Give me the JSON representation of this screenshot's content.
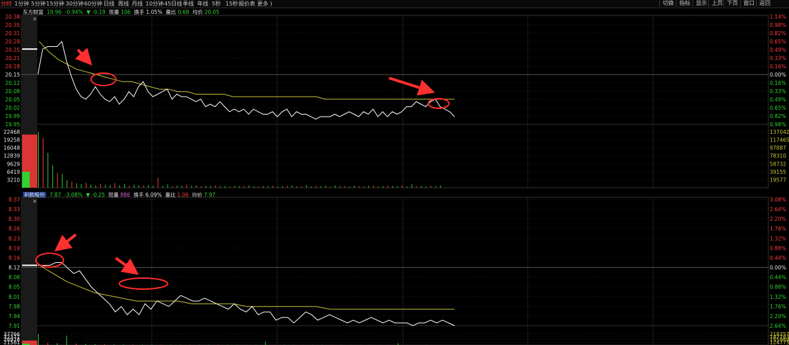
{
  "toolbar": {
    "tabs": [
      "分时",
      "1分钟",
      "5分钟",
      "15分钟",
      "30分钟",
      "60分钟",
      "日线",
      "周线",
      "月线",
      "10分钟",
      "45日线",
      "季线",
      "年线",
      "5秒",
      "15秒",
      "报价表",
      "更多 )"
    ],
    "active_tab": "分时",
    "right_buttons": [
      "切换",
      "指标",
      "显示",
      "上页",
      "下页",
      "窗口",
      "返回"
    ]
  },
  "colors": {
    "up": "#ff3b3b",
    "down": "#2fd32f",
    "avg": "#c8c43a",
    "price": "#ffffff",
    "grid": "#222222"
  },
  "panel1": {
    "name": "东方财富",
    "price": "19.96",
    "change_pct": "-0.94%",
    "change_arrow": "▼",
    "change": "-0.19",
    "volume_label": "现量",
    "volume": "106",
    "turnover_label": "换手",
    "turnover": "1.05%",
    "ratio_label": "量比",
    "ratio": "0.68",
    "avg_label": "均价",
    "avg": "20.05",
    "price_axis": [
      "20.38",
      "20.35",
      "20.31",
      "20.28",
      "20.25",
      "20.21",
      "20.18",
      "20.15",
      "20.12",
      "20.08",
      "20.05",
      "20.02",
      "19.99",
      "19.95"
    ],
    "pct_axis": [
      "1.14%",
      "0.98%",
      "0.82%",
      "0.65%",
      "0.49%",
      "0.33%",
      "0.16%",
      "0.00%",
      "0.16%",
      "0.33%",
      "0.49%",
      "0.65%",
      "0.82%",
      "0.98%"
    ],
    "vol_axis": [
      "22468",
      "19258",
      "16048",
      "12839",
      "9629",
      "6419",
      "3210"
    ],
    "vol_axis_right": [
      "137042",
      "117465",
      "97887",
      "78310",
      "58732",
      "39155",
      "19577"
    ]
  },
  "panel2": {
    "name": "利欧股份",
    "price": "7.87",
    "change_pct": "-3.08%",
    "change_arrow": "▼",
    "change": "-0.25",
    "volume_label": "现量",
    "volume": "886",
    "turnover_label": "换手",
    "turnover": "6.09%",
    "ratio_label": "量比",
    "ratio": "1.06",
    "avg_label": "均价",
    "avg": "7.97",
    "price_axis": [
      "8.37",
      "8.33",
      "8.30",
      "8.26",
      "8.23",
      "8.19",
      "8.16",
      "8.12",
      "8.08",
      "8.05",
      "8.01",
      "7.98",
      "7.94",
      "7.91"
    ],
    "pct_axis": [
      "3.08%",
      "2.64%",
      "2.20%",
      "1.76%",
      "1.32%",
      "0.88%",
      "0.44%",
      "0.00%",
      "0.44%",
      "0.88%",
      "1.32%",
      "1.76%",
      "2.20%",
      "2.64%"
    ],
    "vol_axis": [
      "37766",
      "32371",
      "26976",
      "21581"
    ],
    "vol_axis_right": [
      "218357",
      "187163",
      "155969",
      "124775"
    ]
  },
  "chart_data": [
    {
      "type": "line",
      "name": "东方财富",
      "ylim": [
        19.95,
        20.38
      ],
      "prev_close": 20.15,
      "series": [
        {
          "values": [
            20.15,
            20.25,
            20.26,
            20.26,
            20.26,
            20.28,
            20.2,
            20.14,
            20.09,
            20.06,
            20.05,
            20.07,
            20.1,
            20.07,
            20.05,
            20.04,
            20.06,
            20.03,
            20.05,
            20.08,
            20.06,
            20.1,
            20.12,
            20.08,
            20.06,
            20.07,
            20.08,
            20.09,
            20.05,
            20.07,
            20.06,
            20.06,
            20.05,
            20.04,
            20.05,
            20.02,
            20.03,
            20.02,
            20.04,
            20.02,
            20.0,
            20.01,
            20.0,
            20.01,
            19.99,
            20.01,
            20.0,
            19.99,
            19.99,
            20.0,
            19.98,
            20.0,
            20.01,
            19.98,
            20.0,
            19.99,
            19.99,
            19.98,
            19.97,
            19.98,
            19.98,
            19.98,
            19.99,
            19.98,
            19.99,
            20.0,
            19.99,
            19.98,
            20.0,
            19.99,
            20.01,
            19.98,
            20.0,
            19.98,
            20.0,
            19.99,
            20.0,
            20.02,
            20.02,
            20.04,
            20.03,
            20.02,
            20.04,
            20.05,
            20.02,
            20.01,
            20.0,
            19.98
          ]
        },
        {
          "values": [
            20.28,
            20.24,
            20.21,
            20.19,
            20.17,
            20.16,
            20.15,
            20.14,
            20.13,
            20.12,
            20.12,
            20.11,
            20.1,
            20.09,
            20.09,
            20.08,
            20.08,
            20.07,
            20.07,
            20.07,
            20.07,
            20.06,
            20.06,
            20.06,
            20.06,
            20.06,
            20.06,
            20.06,
            20.06,
            20.06,
            20.06,
            20.05,
            20.05,
            20.05,
            20.05,
            20.05,
            20.05,
            20.05,
            20.05,
            20.05,
            20.05,
            20.05,
            20.05,
            20.05,
            20.05,
            20.05
          ]
        }
      ],
      "volume_ylim": [
        0,
        22468
      ],
      "volume": [
        22468,
        20000,
        14000,
        9000,
        6000,
        5500,
        3000,
        2500,
        1800,
        1500,
        2000,
        1200,
        900,
        1500,
        1200,
        1000,
        1800,
        900,
        1500,
        800,
        1200,
        1000,
        900,
        1100,
        800,
        4000,
        700,
        1300,
        600,
        900,
        800,
        1200,
        700,
        900,
        600,
        800,
        700,
        900,
        600,
        700,
        500,
        800,
        600,
        700,
        900,
        600,
        500,
        700,
        600,
        800,
        500,
        600,
        700,
        900,
        500,
        600,
        1000,
        500,
        700,
        600,
        800,
        500,
        900,
        600,
        700,
        500,
        800,
        600,
        500,
        700,
        900,
        500,
        600,
        800,
        700,
        600,
        900,
        500,
        1400,
        600,
        700,
        500,
        800,
        600,
        900
      ]
    },
    {
      "type": "line",
      "name": "利欧股份",
      "ylim": [
        7.91,
        8.37
      ],
      "prev_close": 8.12,
      "series": [
        {
          "values": [
            8.13,
            8.13,
            8.13,
            8.14,
            8.14,
            8.12,
            8.1,
            8.11,
            8.08,
            8.05,
            8.03,
            8.01,
            7.99,
            7.96,
            7.98,
            7.95,
            7.97,
            7.95,
            7.99,
            7.97,
            8.0,
            7.99,
            7.98,
            8.0,
            8.02,
            8.01,
            8.0,
            8.0,
            8.01,
            8.0,
            7.99,
            7.98,
            7.97,
            7.99,
            7.97,
            7.96,
            7.98,
            7.95,
            7.96,
            7.96,
            7.93,
            7.94,
            7.94,
            7.92,
            7.94,
            7.96,
            7.95,
            7.93,
            7.94,
            7.95,
            7.94,
            7.93,
            7.92,
            7.93,
            7.92,
            7.93,
            7.94,
            7.93,
            7.92,
            7.93,
            7.92,
            7.92,
            7.92,
            7.91,
            7.92,
            7.92,
            7.93,
            7.92,
            7.93,
            7.92,
            7.91
          ]
        },
        {
          "values": [
            8.13,
            8.1,
            8.07,
            8.05,
            8.03,
            8.02,
            8.01,
            8.0,
            8.0,
            8.0,
            8.0,
            7.99,
            7.99,
            7.99,
            7.99,
            7.98,
            7.98,
            7.98,
            7.98,
            7.98,
            7.98,
            7.97,
            7.97,
            7.97,
            7.97,
            7.97,
            7.97,
            7.97,
            7.97,
            7.97,
            7.97
          ]
        }
      ],
      "volume_ylim": [
        0,
        37766
      ],
      "volume": [
        37766,
        8000,
        6000,
        32000,
        5000,
        4000,
        3000,
        2500,
        2000,
        1800,
        1500,
        1400,
        1200,
        1100,
        1000,
        900,
        1000,
        800,
        700,
        900,
        800,
        700,
        600,
        800,
        12000,
        600,
        700,
        500,
        600,
        500,
        700,
        600,
        500,
        400,
        600,
        500,
        400,
        500,
        6000,
        400,
        300,
        500
      ]
    }
  ]
}
